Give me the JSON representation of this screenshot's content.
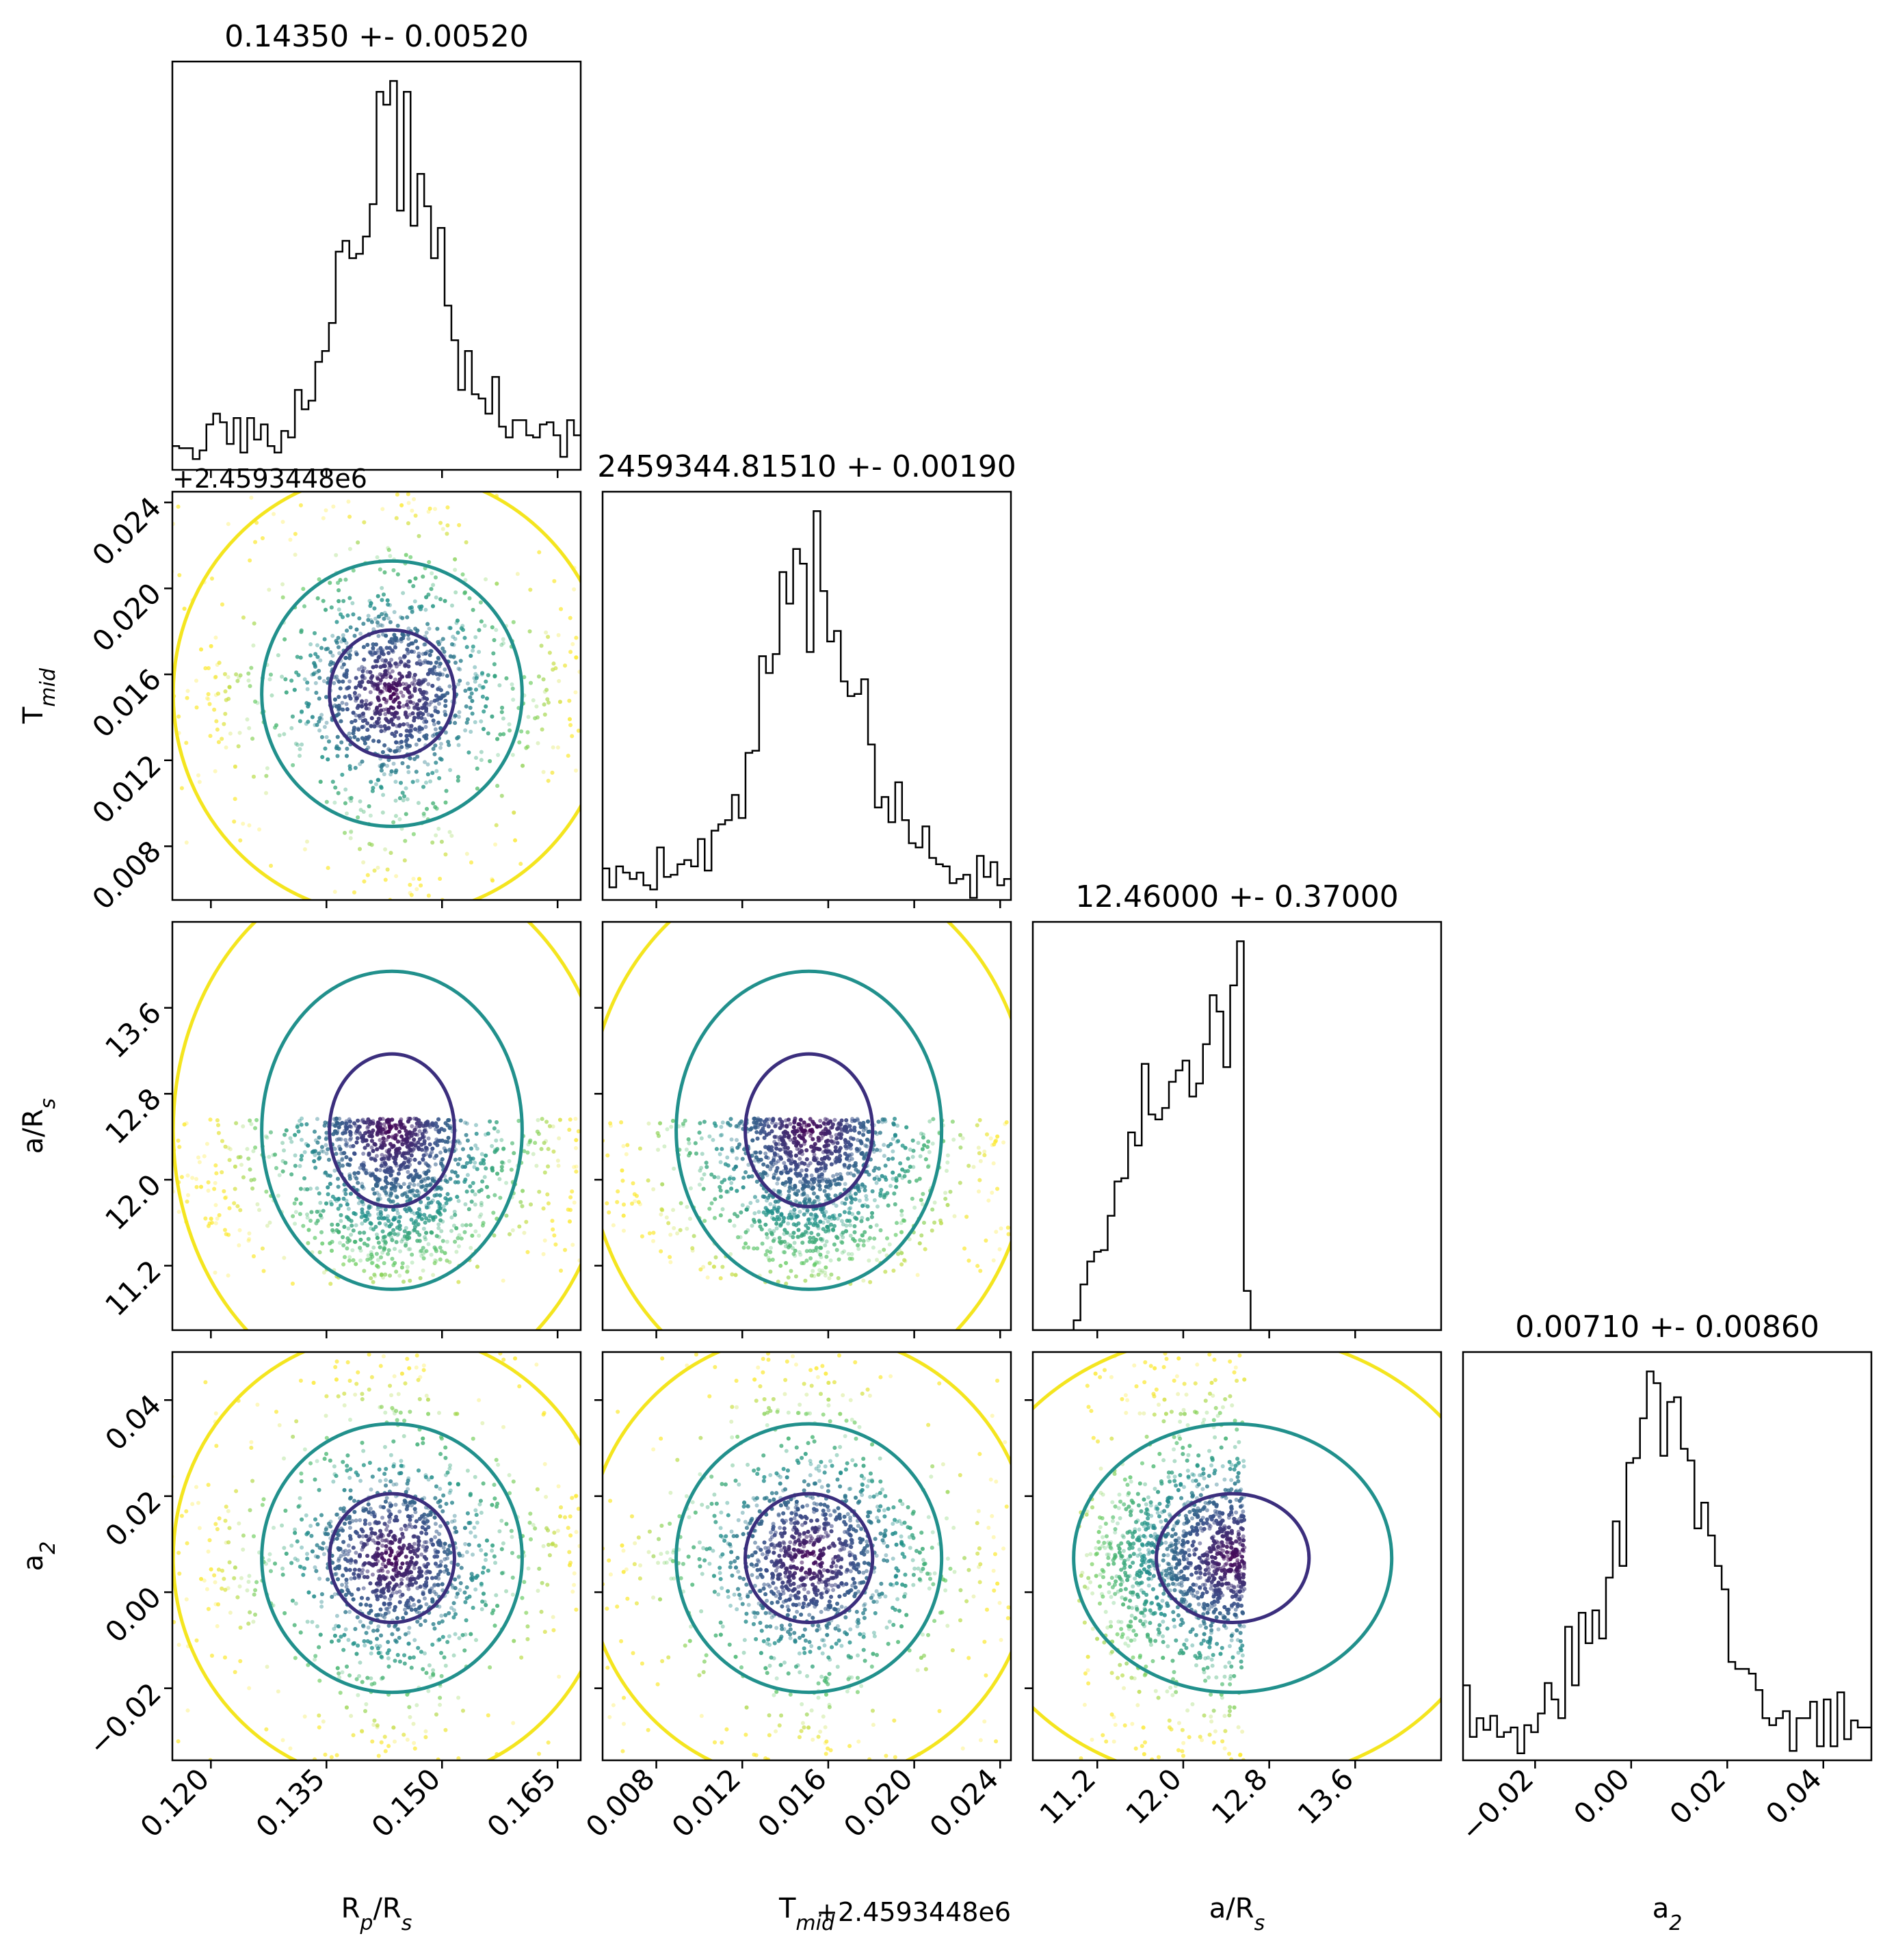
{
  "chart_data": {
    "type": "scatter",
    "subtype": "corner-plot",
    "parameters": [
      {
        "key": "rprs",
        "axis_label": "R",
        "axis_label_sub": "p",
        "axis_label_tail": "/R",
        "axis_label_sub2": "s",
        "title": "0.14350 +- 0.00520",
        "range": [
          0.115,
          0.168
        ],
        "median": 0.1435,
        "sigma": 0.0052,
        "ticks": [
          0.12,
          0.135,
          0.15,
          0.165
        ],
        "tick_labels": [
          "0.120",
          "0.135",
          "0.150",
          "0.165"
        ]
      },
      {
        "key": "tmid",
        "axis_label": "T",
        "axis_label_sub": "mid",
        "axis_label_tail": "",
        "axis_label_sub2": "",
        "title": "2459344.81510 +- 0.00190",
        "offset_label": "+2.4593448e6",
        "range": [
          0.0055,
          0.0245
        ],
        "median": 0.0151,
        "sigma": 0.0019,
        "ticks": [
          0.008,
          0.012,
          0.016,
          0.02,
          0.024
        ],
        "tick_labels": [
          "0.008",
          "0.012",
          "0.016",
          "0.020",
          "0.024"
        ]
      },
      {
        "key": "ars",
        "axis_label": "a/R",
        "axis_label_sub": "s",
        "axis_label_tail": "",
        "axis_label_sub2": "",
        "title": "12.46000 +- 0.37000",
        "range": [
          10.6,
          14.4
        ],
        "median": 12.46,
        "sigma": 0.37,
        "support": [
          11.03,
          12.57
        ],
        "ticks": [
          11.2,
          12.0,
          12.8,
          13.6
        ],
        "tick_labels": [
          "11.2",
          "12.0",
          "12.8",
          "13.6"
        ]
      },
      {
        "key": "a2",
        "axis_label": "a",
        "axis_label_sub": "2",
        "axis_label_tail": "",
        "axis_label_sub2": "",
        "title": "0.00710 +- 0.00860",
        "range": [
          -0.035,
          0.05
        ],
        "median": 0.0071,
        "sigma": 0.0086,
        "ticks": [
          -0.02,
          0.0,
          0.02,
          0.04
        ],
        "tick_labels": [
          "−0.02",
          "0.00",
          "0.02",
          "0.04"
        ]
      }
    ],
    "scatter_colormap": "viridis",
    "contour_colors": [
      "#3b2e7d",
      "#21908c",
      "#f4e51f"
    ],
    "histogram_color": "#000000",
    "grid": false
  }
}
